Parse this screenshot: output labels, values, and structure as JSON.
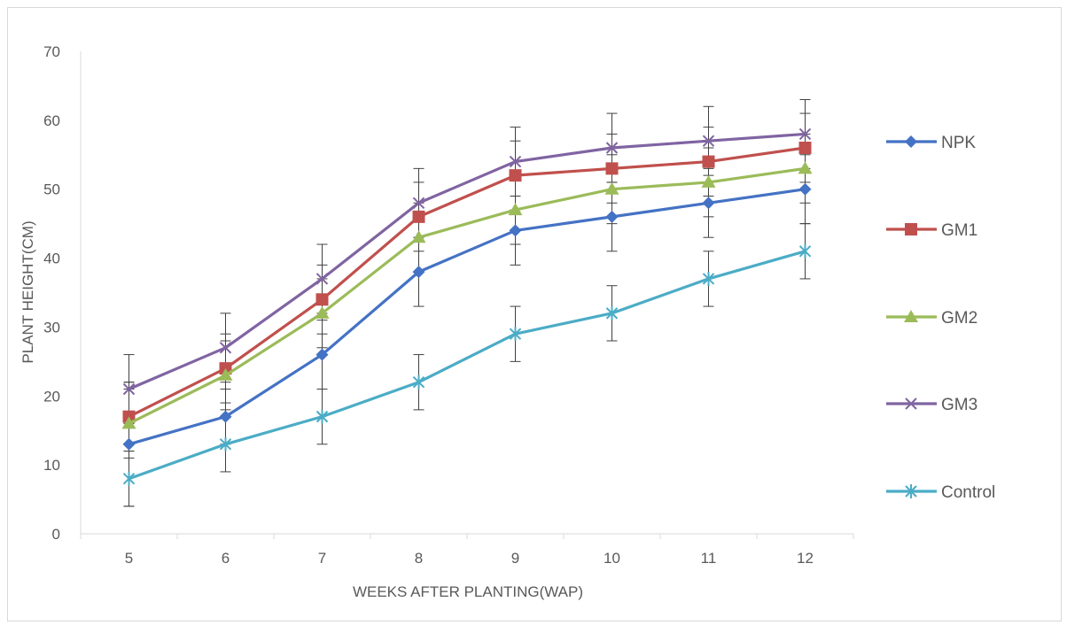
{
  "chart_data": {
    "type": "line",
    "xlabel": "WEEKS AFTER PLANTING(WAP)",
    "ylabel": "PLANT HEIGHT(CM)",
    "categories": [
      "5",
      "6",
      "7",
      "8",
      "9",
      "10",
      "11",
      "12"
    ],
    "ylim": [
      0,
      70
    ],
    "yticks": [
      0,
      10,
      20,
      30,
      40,
      50,
      60,
      70
    ],
    "grid": false,
    "legend_position": "right",
    "series": [
      {
        "name": "NPK",
        "marker": "diamond",
        "color": "#4472c4",
        "values": [
          13,
          17,
          26,
          38,
          44,
          46,
          48,
          50
        ],
        "error": [
          9,
          4,
          5,
          5,
          5,
          5,
          5,
          5
        ]
      },
      {
        "name": "GM1",
        "marker": "square",
        "color": "#c0504d",
        "values": [
          17,
          24,
          34,
          46,
          52,
          53,
          54,
          56
        ],
        "error": [
          5,
          5,
          5,
          5,
          5,
          5,
          5,
          5
        ]
      },
      {
        "name": "GM2",
        "marker": "triangle",
        "color": "#9bbb59",
        "values": [
          16,
          23,
          32,
          43,
          47,
          50,
          51,
          53
        ],
        "error": [
          5,
          5,
          5,
          5,
          5,
          5,
          5,
          5
        ]
      },
      {
        "name": "GM3",
        "marker": "x",
        "color": "#8064a2",
        "values": [
          21,
          27,
          37,
          48,
          54,
          56,
          57,
          58
        ],
        "error": [
          5,
          5,
          5,
          5,
          5,
          5,
          5,
          5
        ]
      },
      {
        "name": "Control",
        "marker": "star",
        "color": "#4bacc6",
        "values": [
          8,
          13,
          17,
          22,
          29,
          32,
          37,
          41
        ],
        "error": [
          4,
          4,
          4,
          4,
          4,
          4,
          4,
          4
        ]
      }
    ]
  }
}
